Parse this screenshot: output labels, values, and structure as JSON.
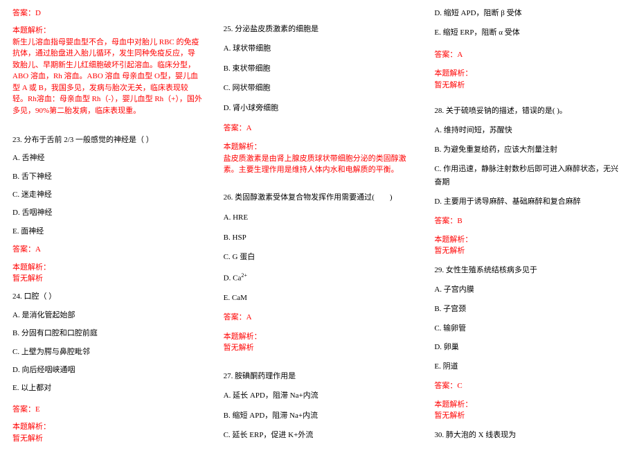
{
  "col1": {
    "ans22": "答案：D",
    "expl22_title": "本题解析：",
    "expl22_body": "新生儿溶血指母婴血型不合，母血中对胎儿 RBC 的免疫抗体，通过胎盘进入胎儿循环，发生同种免疫反应，导致胎儿、早期新生儿红细胞破坏引起溶血。临床分型，ABO 溶血，Rh 溶血。ABO 溶血 母亲血型 O型，婴儿血型 A 或 B，我国多见，发病与胎次无关，临床表现较轻。Rh溶血：母亲血型 Rh（-），婴儿血型 Rh（+），国外多见，90%第二胎发病，临床表现重。",
    "q23": "23. 分布于舌前 2/3 一般感觉的神经是（ ）",
    "q23a": "A. 舌神经",
    "q23b": "B. 舌下神经",
    "q23c": "C. 迷走神经",
    "q23d": "D. 舌咽神经",
    "q23e": "E. 面神经",
    "ans23": "答案：A",
    "expl23_title": "本题解析：",
    "expl23_body": "暂无解析",
    "q24": "24. 口腔（ ）",
    "q24a": "A. 是消化管起始部",
    "q24b": "B. 分固有口腔和口腔前庭",
    "q24c": "C. 上壁为腭与鼻腔毗邻",
    "q24d": "D. 向后经咽峡通咽",
    "q24e": "E. 以上都对",
    "ans24": "答案：E",
    "expl24_title": "本题解析：",
    "expl24_body": "暂无解析"
  },
  "col2": {
    "q25": "25. 分泌盐皮质激素的细胞是",
    "q25a": "A. 球状带细胞",
    "q25b": "B. 束状带细胞",
    "q25c": "C. 网状带细胞",
    "q25d": "D. 肾小球旁细胞",
    "ans25": "答案：A",
    "expl25_title": "本题解析：",
    "expl25_body": "盐皮质激素是由肾上腺皮质球状带细胞分泌的类固醇激素。主要生理作用是维持人体内水和电解质的平衡。",
    "q26": "26. 类固醇激素受体复合物发挥作用需要通过(　　)",
    "q26a": "A. HRE",
    "q26b": "B. HSP",
    "q26c": "C. G 蛋白",
    "q26d_pre": "D. Ca",
    "q26d_sup": "2+",
    "q26e": "E. CaM",
    "ans26": "答案：A",
    "expl26_title": "本题解析：",
    "expl26_body": "暂无解析",
    "q27": "27. 胺碘酮药理作用是",
    "q27a": "A. 延长 APD，阻滞 Na+内流",
    "q27b": "B. 缩短 APD，阻滞 Na+内流",
    "q27c": "C. 延长 ERP，促进 K+外流"
  },
  "col3": {
    "q27d": "D. 缩短 APD，阻断 β 受体",
    "q27e": "E. 缩短 ERP，阻断 α 受体",
    "ans27": "答案：A",
    "expl27_title": "本题解析：",
    "expl27_body": "暂无解析",
    "q28": "28. 关于硫喷妥钠的描述，错误的是( )。",
    "q28a": "A. 维持时间短，苏醒快",
    "q28b": "B. 为避免重复给药，应该大剂量注射",
    "q28c": "C. 作用迅速，静脉注射数秒后即可进入麻醉状态，无兴奋期",
    "q28d": "D. 主要用于诱导麻醉、基础麻醉和复合麻醉",
    "ans28": "答案：B",
    "expl28_title": "本题解析：",
    "expl28_body": "暂无解析",
    "q29": "29. 女性生殖系统结核病多见于",
    "q29a": "A. 子宫内膜",
    "q29b": "B. 子宫颈",
    "q29c": "C. 输卵管",
    "q29d": "D. 卵巢",
    "q29e": "E. 阴道",
    "ans29": "答案：C",
    "expl29_title": "本题解析：",
    "expl29_body": "暂无解析",
    "q30": "30. 肺大泡的 X 线表现为"
  }
}
